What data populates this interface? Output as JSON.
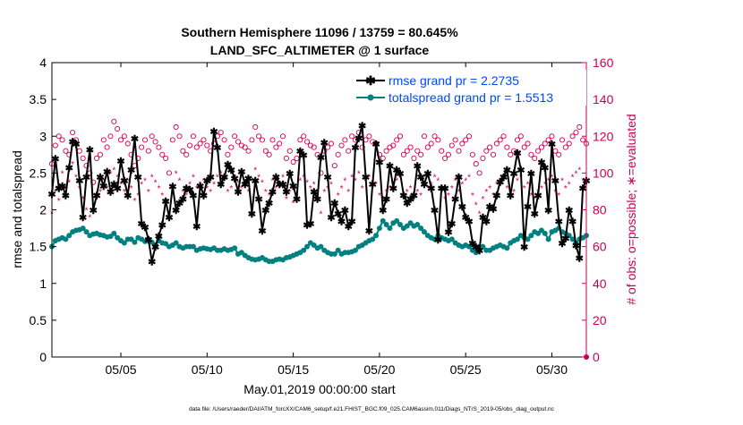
{
  "chart_data": {
    "type": "line",
    "title_line1": "Southern Hemisphere 11096 / 13759 = 80.645%",
    "title_line2": "LAND_SFC_ALTIMETER @ 1 surface",
    "xlabel": "May.01,2019 00:00:00 start",
    "ylabel_left": "rmse and totalspread",
    "ylabel_right": "# of obs: o=possible; ∗=evaluated",
    "footer": "data file: /Users/raeder/DAI/ATM_forcXX/CAM6_setup/f.e21.FHIST_BGC.f09_025.CAM6assim.011/Diags_NTrS_2019-05/obs_diag_output.nc",
    "x_tick_labels": [
      "05/05",
      "05/10",
      "05/15",
      "05/20",
      "05/25",
      "05/30"
    ],
    "x_tick_days": [
      5,
      10,
      15,
      20,
      25,
      30
    ],
    "xlim": [
      1,
      32
    ],
    "ylim_left": [
      0,
      4
    ],
    "y_ticks_left": [
      "0",
      "0.5",
      "1",
      "1.5",
      "2",
      "2.5",
      "3",
      "3.5",
      "4"
    ],
    "ylim_right": [
      0,
      160
    ],
    "y_ticks_right": [
      "0",
      "20",
      "40",
      "60",
      "80",
      "100",
      "120",
      "140",
      "160"
    ],
    "legend_position": "top-right",
    "colors": {
      "rmse": "#000000",
      "spread": "#008080",
      "obs": "#cc0055",
      "legend_text": "#0047ff"
    },
    "series": [
      {
        "name": "rmse grand pr = 2.2735",
        "axis": "left",
        "values": [
          2.22,
          2.7,
          2.3,
          2.33,
          2.2,
          2.58,
          2.93,
          2.9,
          2.4,
          1.9,
          2.45,
          2.82,
          2.0,
          2.2,
          2.45,
          2.33,
          2.52,
          2.25,
          2.35,
          2.3,
          2.67,
          2.4,
          2.2,
          2.55,
          2.97,
          2.45,
          1.82,
          1.77,
          1.6,
          1.3,
          1.5,
          1.65,
          1.8,
          2.12,
          1.9,
          2.32,
          2.0,
          2.1,
          2.15,
          2.3,
          2.28,
          2.2,
          1.78,
          2.33,
          2.2,
          2.4,
          2.45,
          3.07,
          2.85,
          2.35,
          2.45,
          2.62,
          2.55,
          2.43,
          2.25,
          2.52,
          2.35,
          2.43,
          1.95,
          2.4,
          2.15,
          1.72,
          2.0,
          2.1,
          2.25,
          2.45,
          2.35,
          2.35,
          2.25,
          2.5,
          2.33,
          2.15,
          2.8,
          2.75,
          1.8,
          1.82,
          2.25,
          2.15,
          2.72,
          2.92,
          2.45,
          1.9,
          2.1,
          1.95,
          1.85,
          2.0,
          1.78,
          1.85,
          2.85,
          2.98,
          3.15,
          2.45,
          1.72,
          2.35,
          2.9,
          2.65,
          2.0,
          2.15,
          2.6,
          2.3,
          2.55,
          2.5,
          2.2,
          2.1,
          2.15,
          2.2,
          2.6,
          2.45,
          2.35,
          2.5,
          2.3,
          2.0,
          1.6,
          2.3,
          2.3,
          1.7,
          1.82,
          2.15,
          2.45,
          2.05,
          1.9,
          1.85,
          1.55,
          1.5,
          1.45,
          1.9,
          1.85,
          2.05,
          2.02,
          2.2,
          2.38,
          2.45,
          2.55,
          2.2,
          2.5,
          2.78,
          2.55,
          1.5,
          2.05,
          2.5,
          1.95,
          2.2,
          2.65,
          2.58,
          2.0,
          2.9,
          2.4,
          1.85,
          1.55,
          1.62,
          2.0,
          1.85,
          1.52,
          1.35,
          2.3,
          2.4
        ]
      },
      {
        "name": "totalspread grand pr = 1.5513",
        "axis": "left",
        "values": [
          1.5,
          1.58,
          1.6,
          1.62,
          1.6,
          1.65,
          1.7,
          1.72,
          1.73,
          1.75,
          1.7,
          1.65,
          1.67,
          1.68,
          1.66,
          1.65,
          1.63,
          1.64,
          1.68,
          1.62,
          1.58,
          1.55,
          1.6,
          1.6,
          1.56,
          1.62,
          1.6,
          1.57,
          1.6,
          1.56,
          1.52,
          1.58,
          1.55,
          1.54,
          1.5,
          1.52,
          1.55,
          1.5,
          1.48,
          1.5,
          1.5,
          1.5,
          1.45,
          1.47,
          1.48,
          1.47,
          1.46,
          1.48,
          1.45,
          1.45,
          1.47,
          1.45,
          1.46,
          1.48,
          1.4,
          1.42,
          1.38,
          1.35,
          1.33,
          1.32,
          1.33,
          1.35,
          1.32,
          1.3,
          1.3,
          1.32,
          1.33,
          1.32,
          1.35,
          1.36,
          1.38,
          1.4,
          1.42,
          1.45,
          1.5,
          1.55,
          1.52,
          1.48,
          1.5,
          1.45,
          1.42,
          1.4,
          1.4,
          1.45,
          1.4,
          1.42,
          1.42,
          1.43,
          1.45,
          1.5,
          1.52,
          1.55,
          1.58,
          1.6,
          1.65,
          1.75,
          1.85,
          1.8,
          1.75,
          1.82,
          1.85,
          1.8,
          1.75,
          1.78,
          1.82,
          1.78,
          1.8,
          1.75,
          1.7,
          1.65,
          1.62,
          1.6,
          1.65,
          1.62,
          1.6,
          1.58,
          1.6,
          1.55,
          1.52,
          1.5,
          1.52,
          1.5,
          1.45,
          1.42,
          1.48,
          1.5,
          1.45,
          1.45,
          1.48,
          1.5,
          1.52,
          1.5,
          1.48,
          1.55,
          1.58,
          1.6,
          1.65,
          1.62,
          1.6,
          1.65,
          1.7,
          1.68,
          1.72,
          1.68,
          1.6,
          1.7,
          1.72,
          1.75,
          1.7,
          1.68,
          1.65,
          1.6,
          1.55,
          1.6,
          1.62,
          1.65
        ]
      },
      {
        "name": "possible",
        "axis": "right",
        "marker": "o",
        "values": [
          105,
          115,
          120,
          118,
          112,
          110,
          122,
          118,
          112,
          108,
          104,
          100,
          95,
          108,
          110,
          118,
          114,
          120,
          128,
          124,
          118,
          120,
          116,
          110,
          104,
          108,
          114,
          118,
          112,
          120,
          117,
          114,
          110,
          108,
          100,
          118,
          125,
          120,
          112,
          110,
          115,
          120,
          114,
          116,
          118,
          115,
          112,
          116,
          120,
          122,
          118,
          110,
          114,
          120,
          117,
          115,
          114,
          112,
          118,
          125,
          120,
          118,
          112,
          110,
          118,
          114,
          116,
          120,
          108,
          112,
          106,
          108,
          118,
          120,
          117,
          115,
          114,
          110,
          100,
          112,
          114,
          116,
          104,
          110,
          115,
          118,
          112,
          120,
          118,
          122,
          114,
          118,
          120,
          117,
          116,
          110,
          108,
          112,
          114,
          115,
          118,
          120,
          110,
          112,
          114,
          108,
          112,
          110,
          120,
          114,
          116,
          120,
          118,
          112,
          108,
          110,
          115,
          118,
          112,
          116,
          118,
          120,
          110,
          105,
          100,
          108,
          112,
          114,
          110,
          116,
          118,
          120,
          114,
          110,
          112,
          118,
          120,
          114,
          116,
          110,
          108,
          112,
          114,
          116,
          118,
          120,
          112,
          110,
          118,
          114,
          116,
          120,
          122,
          125,
          118,
          116
        ]
      },
      {
        "name": "evaluated",
        "axis": "right",
        "marker": "*",
        "values": [
          78,
          90,
          85,
          100,
          92,
          95,
          105,
          98,
          92,
          86,
          80,
          76,
          82,
          88,
          90,
          96,
          92,
          100,
          102,
          98,
          94,
          90,
          96,
          92,
          85,
          88,
          94,
          96,
          90,
          98,
          95,
          92,
          88,
          85,
          78,
          92,
          100,
          96,
          90,
          88,
          94,
          98,
          92,
          94,
          96,
          92,
          90,
          94,
          98,
          100,
          96,
          90,
          92,
          98,
          95,
          92,
          94,
          90,
          96,
          102,
          98,
          95,
          90,
          88,
          96,
          92,
          94,
          98,
          86,
          90,
          84,
          86,
          96,
          98,
          95,
          92,
          94,
          90,
          78,
          90,
          92,
          94,
          82,
          88,
          92,
          96,
          90,
          98,
          96,
          100,
          92,
          96,
          98,
          95,
          94,
          88,
          86,
          90,
          92,
          94,
          96,
          98,
          88,
          90,
          92,
          86,
          90,
          88,
          98,
          92,
          94,
          98,
          96,
          90,
          86,
          88,
          92,
          96,
          90,
          94,
          96,
          98,
          88,
          83,
          78,
          86,
          90,
          92,
          88,
          94,
          96,
          98,
          92,
          88,
          90,
          96,
          98,
          92,
          94,
          88,
          86,
          90,
          92,
          94,
          96,
          98,
          90,
          88,
          96,
          92,
          94,
          98,
          100,
          102,
          96,
          94
        ]
      }
    ]
  }
}
